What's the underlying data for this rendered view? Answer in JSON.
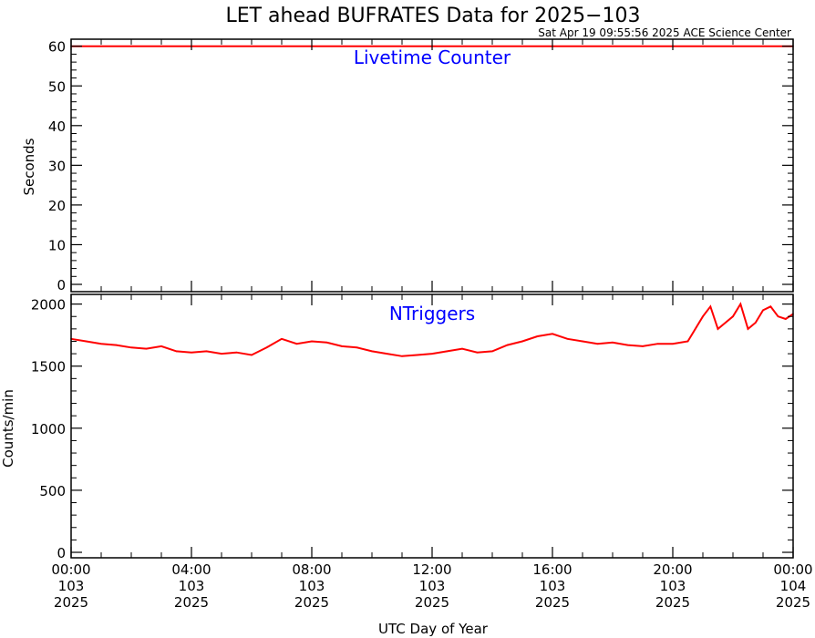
{
  "title": "LET ahead BUFRATES Data for 2025−103",
  "timestamp": "Sat Apr 19 09:55:56 2025 ACE Science Center",
  "x_axis_label": "UTC Day of Year",
  "x_ticks": [
    {
      "time": "00:00",
      "doy": "103",
      "year": "2025"
    },
    {
      "time": "04:00",
      "doy": "103",
      "year": "2025"
    },
    {
      "time": "08:00",
      "doy": "103",
      "year": "2025"
    },
    {
      "time": "12:00",
      "doy": "103",
      "year": "2025"
    },
    {
      "time": "16:00",
      "doy": "103",
      "year": "2025"
    },
    {
      "time": "20:00",
      "doy": "103",
      "year": "2025"
    },
    {
      "time": "00:00",
      "doy": "104",
      "year": "2025"
    }
  ],
  "colors": {
    "data": "#ff0000",
    "panel_label": "#0000ff",
    "axis": "#000000",
    "background": "#ffffff"
  },
  "chart_data": [
    {
      "type": "line",
      "title": "Livetime Counter",
      "ylabel": "Seconds",
      "xlim": [
        0,
        24
      ],
      "ylim": [
        0,
        62
      ],
      "y_ticks": [
        0,
        10,
        20,
        30,
        40,
        50,
        60
      ],
      "grid": false,
      "series": [
        {
          "x": [
            0,
            24
          ],
          "y": [
            60,
            60
          ],
          "color": "#ff0000"
        }
      ]
    },
    {
      "type": "line",
      "title": "NTriggers",
      "ylabel": "Counts/min",
      "xlim": [
        0,
        24
      ],
      "ylim": [
        0,
        2100
      ],
      "y_ticks": [
        0,
        500,
        1000,
        1500,
        2000
      ],
      "grid": false,
      "series": [
        {
          "color": "#ff0000",
          "x": [
            0,
            0.5,
            1,
            1.5,
            2,
            2.5,
            3,
            3.5,
            4,
            4.5,
            5,
            5.5,
            6,
            6.5,
            7,
            7.5,
            8,
            8.5,
            9,
            9.5,
            10,
            10.5,
            11,
            11.5,
            12,
            12.5,
            13,
            13.5,
            14,
            14.5,
            15,
            15.5,
            16,
            16.5,
            17,
            17.5,
            18,
            18.5,
            19,
            19.5,
            20,
            20.5,
            21,
            21.25,
            21.5,
            21.75,
            22,
            22.25,
            22.5,
            22.75,
            23,
            23.25,
            23.5,
            23.75,
            24
          ],
          "y": [
            1720,
            1700,
            1680,
            1670,
            1650,
            1640,
            1660,
            1620,
            1610,
            1620,
            1600,
            1610,
            1590,
            1650,
            1720,
            1680,
            1700,
            1690,
            1660,
            1650,
            1620,
            1600,
            1580,
            1590,
            1600,
            1620,
            1640,
            1610,
            1620,
            1670,
            1700,
            1740,
            1760,
            1720,
            1700,
            1680,
            1690,
            1670,
            1660,
            1680,
            1680,
            1700,
            1900,
            1980,
            1800,
            1850,
            1900,
            2000,
            1800,
            1850,
            1950,
            1980,
            1900,
            1880,
            1920
          ]
        }
      ]
    }
  ]
}
